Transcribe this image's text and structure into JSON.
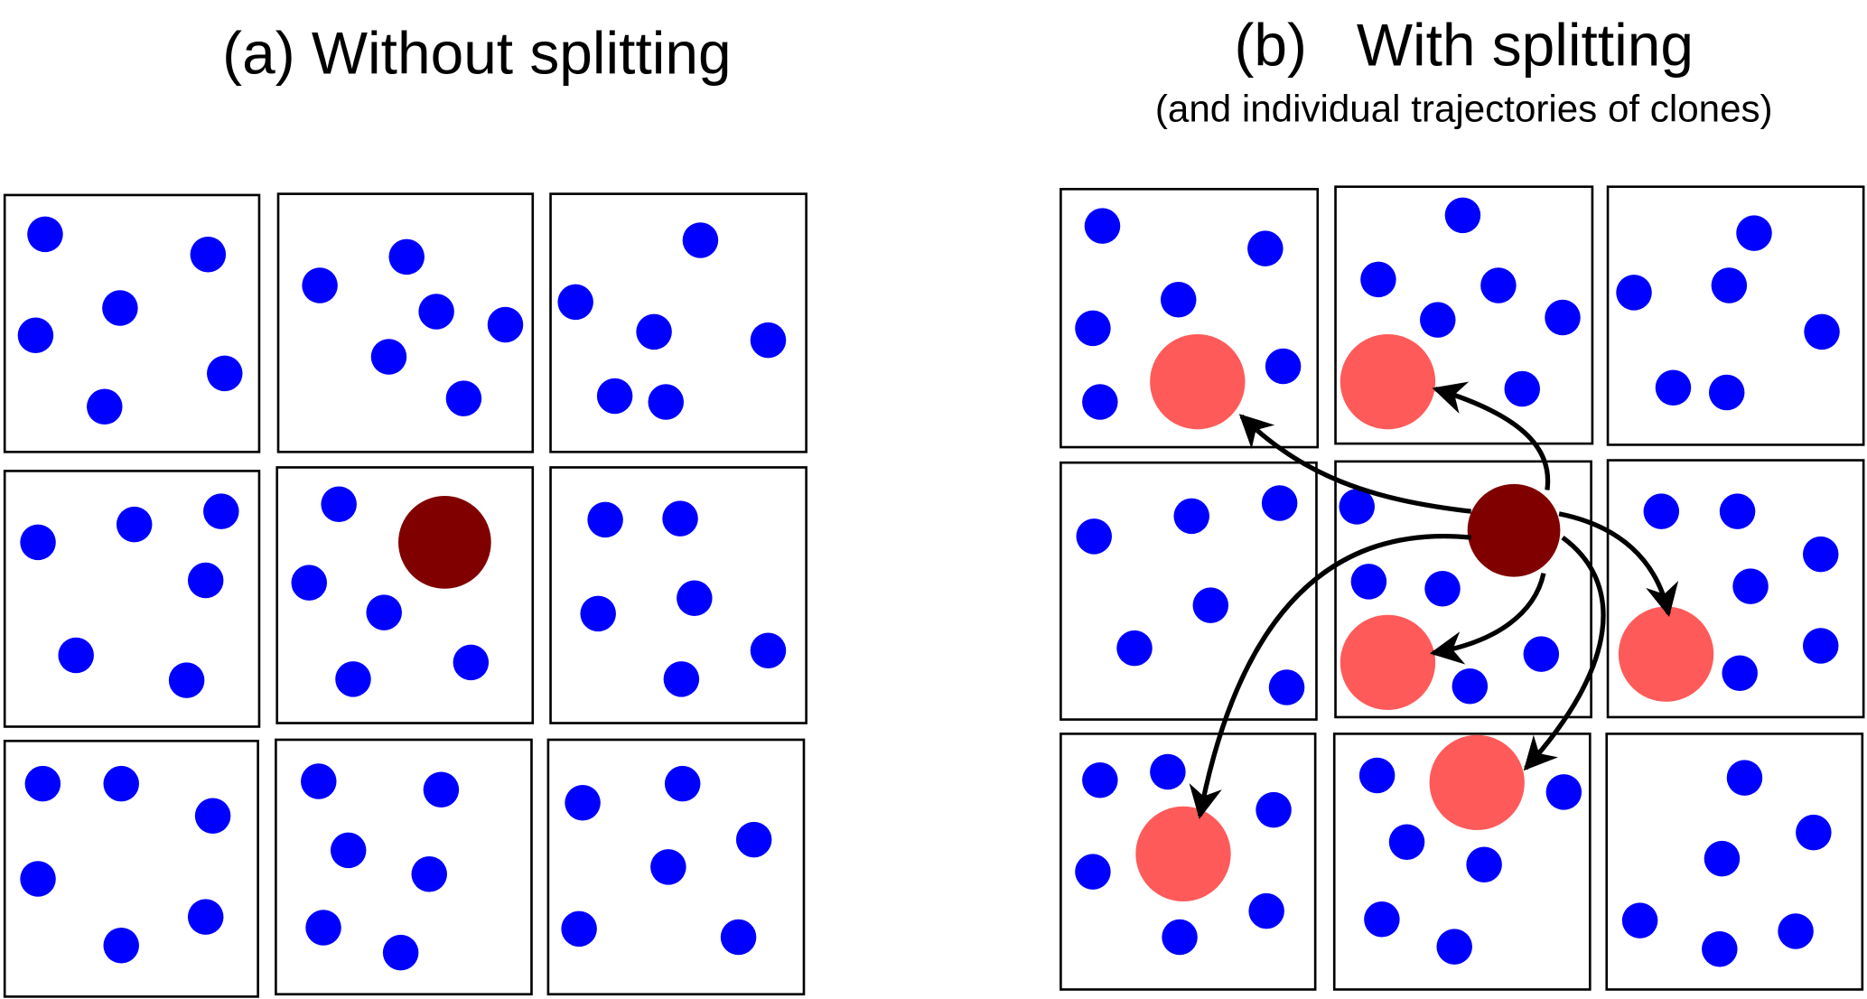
{
  "panel_a": {
    "title": "(a) Without splitting"
  },
  "panel_b": {
    "title": "(b)   With splitting",
    "subtitle": "(and individual trajectories of clones)"
  },
  "colors": {
    "particle": "#0000ff",
    "original_walker": "#800000",
    "clone": "#ff5a5a",
    "box_stroke": "#000000",
    "arrow": "#000000"
  }
}
